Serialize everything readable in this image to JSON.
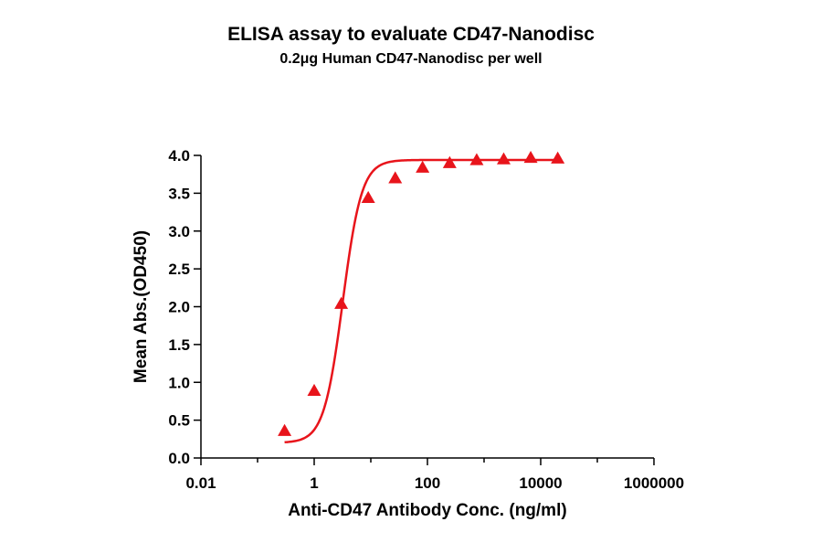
{
  "chart_data": {
    "type": "scatter",
    "title": "ELISA assay to evaluate CD47-Nanodisc",
    "subtitle": "0.2μg Human CD47-Nanodisc per well",
    "xlabel": "Anti-CD47 Antibody Conc. (ng/ml)",
    "ylabel": "Mean Abs.(OD450)",
    "xscale": "log10",
    "xlim": [
      0.01,
      1000000
    ],
    "ylim": [
      0,
      4.0
    ],
    "x_ticks": [
      {
        "value": 0.01,
        "label": "0.01"
      },
      {
        "value": 1,
        "label": "1"
      },
      {
        "value": 100,
        "label": "100"
      },
      {
        "value": 10000,
        "label": "10000"
      },
      {
        "value": 1000000,
        "label": "1000000"
      }
    ],
    "y_ticks": [
      {
        "value": 0,
        "label": "0.0"
      },
      {
        "value": 0.5,
        "label": "0.5"
      },
      {
        "value": 1.0,
        "label": "1.0"
      },
      {
        "value": 1.5,
        "label": "1.5"
      },
      {
        "value": 2.0,
        "label": "2.0"
      },
      {
        "value": 2.5,
        "label": "2.5"
      },
      {
        "value": 3.0,
        "label": "3.0"
      },
      {
        "value": 3.5,
        "label": "3.5"
      },
      {
        "value": 4.0,
        "label": "4.0"
      }
    ],
    "series": [
      {
        "color": "#e8141b",
        "marker": "triangle",
        "points": [
          {
            "x": 0.3,
            "y": 0.36
          },
          {
            "x": 1.0,
            "y": 0.89
          },
          {
            "x": 3.0,
            "y": 2.04
          },
          {
            "x": 9.0,
            "y": 3.44
          },
          {
            "x": 27,
            "y": 3.7
          },
          {
            "x": 82,
            "y": 3.84
          },
          {
            "x": 247,
            "y": 3.9
          },
          {
            "x": 741,
            "y": 3.94
          },
          {
            "x": 2222,
            "y": 3.95
          },
          {
            "x": 6667,
            "y": 3.97
          },
          {
            "x": 20000,
            "y": 3.96
          }
        ],
        "fit": {
          "model": "4PL",
          "bottom": 0.2,
          "top": 3.94,
          "ec50": 3.2,
          "hill": 2.6
        }
      }
    ],
    "grid": false,
    "legend": "none"
  }
}
